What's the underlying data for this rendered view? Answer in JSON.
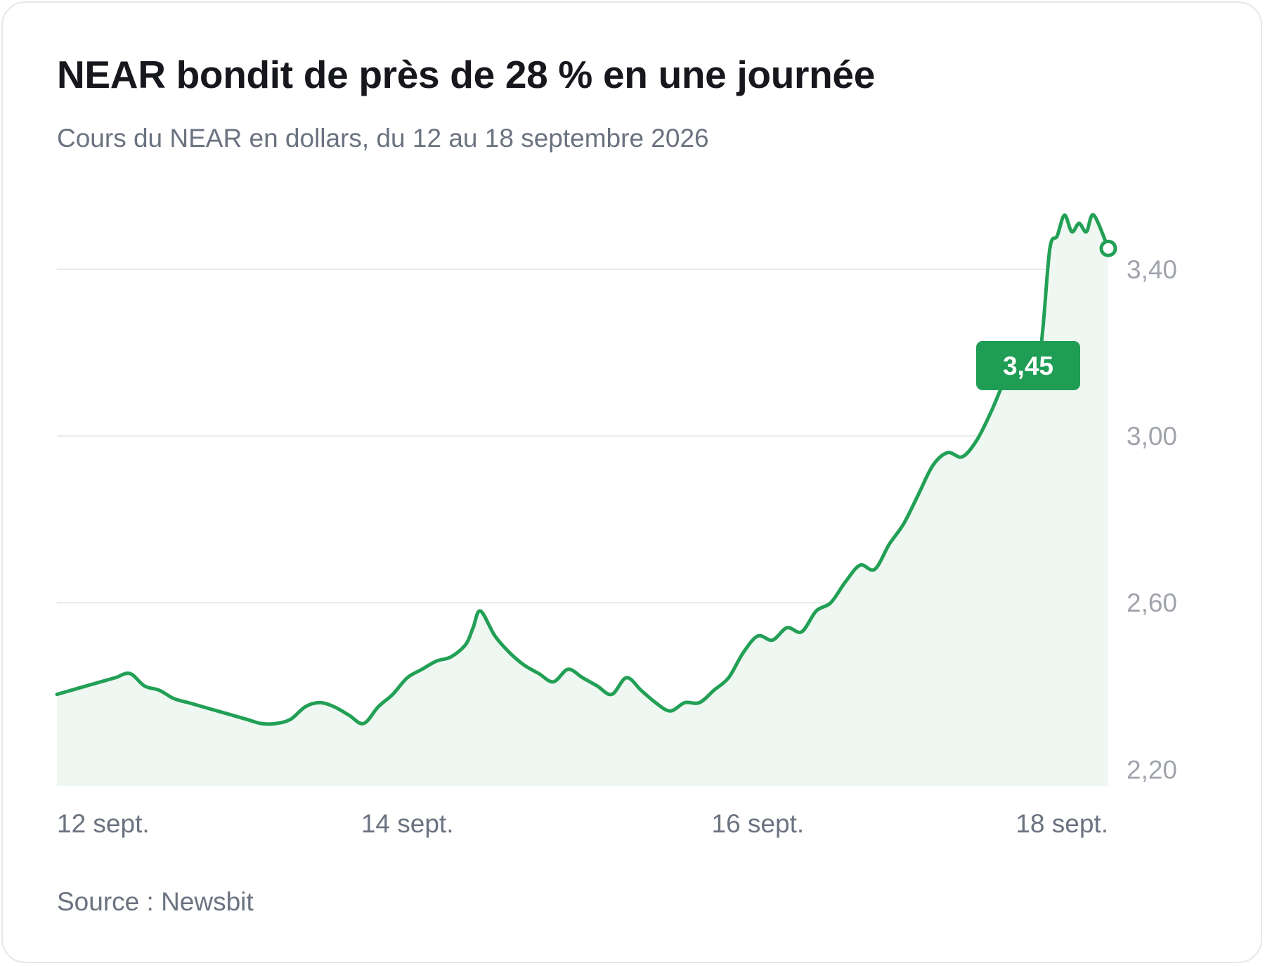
{
  "title": "NEAR bondit de près de 28 % en une journée",
  "subtitle": "Cours du NEAR en dollars, du 12 au 18 septembre 2026",
  "source": "Source : Newsbit",
  "colors": {
    "line": "#22a055",
    "area": "#eff7f2",
    "grid": "#e8e9ec",
    "callout": "#1f9d55"
  },
  "chart_data": {
    "type": "area",
    "title": "NEAR bondit de près de 28 % en une journée",
    "subtitle": "Cours du NEAR en dollars, du 12 au 18 septembre 2026",
    "xlabel": "",
    "ylabel": "",
    "x_start": "2026-09-12",
    "x_end": "2026-09-18",
    "x_ticks": [
      {
        "date": "2026-09-12",
        "label": "12 sept."
      },
      {
        "date": "2026-09-14",
        "label": "14 sept."
      },
      {
        "date": "2026-09-16",
        "label": "16 sept."
      },
      {
        "date": "2026-09-18",
        "label": "18 sept."
      }
    ],
    "y_ticks": [
      {
        "value": 2.2,
        "label": "2,20"
      },
      {
        "value": 2.6,
        "label": "2,60"
      },
      {
        "value": 3.0,
        "label": "3,00"
      },
      {
        "value": 3.4,
        "label": "3,40"
      }
    ],
    "ylim": [
      2.16,
      3.54
    ],
    "y_axis_position": "right",
    "grid": true,
    "legend": "none",
    "series": [
      {
        "points": [
          {
            "x": "2026-09-12T00:00",
            "y": 2.38
          },
          {
            "x": "2026-09-12T02:00",
            "y": 2.39
          },
          {
            "x": "2026-09-12T04:00",
            "y": 2.4
          },
          {
            "x": "2026-09-12T06:00",
            "y": 2.41
          },
          {
            "x": "2026-09-12T08:00",
            "y": 2.42
          },
          {
            "x": "2026-09-12T10:00",
            "y": 2.43
          },
          {
            "x": "2026-09-12T12:00",
            "y": 2.4
          },
          {
            "x": "2026-09-12T14:00",
            "y": 2.39
          },
          {
            "x": "2026-09-12T16:00",
            "y": 2.37
          },
          {
            "x": "2026-09-12T18:00",
            "y": 2.36
          },
          {
            "x": "2026-09-12T20:00",
            "y": 2.35
          },
          {
            "x": "2026-09-12T22:00",
            "y": 2.34
          },
          {
            "x": "2026-09-13T00:00",
            "y": 2.33
          },
          {
            "x": "2026-09-13T02:00",
            "y": 2.32
          },
          {
            "x": "2026-09-13T04:00",
            "y": 2.31
          },
          {
            "x": "2026-09-13T06:00",
            "y": 2.31
          },
          {
            "x": "2026-09-13T08:00",
            "y": 2.32
          },
          {
            "x": "2026-09-13T10:00",
            "y": 2.35
          },
          {
            "x": "2026-09-13T12:00",
            "y": 2.36
          },
          {
            "x": "2026-09-13T14:00",
            "y": 2.35
          },
          {
            "x": "2026-09-13T16:00",
            "y": 2.33
          },
          {
            "x": "2026-09-13T18:00",
            "y": 2.31
          },
          {
            "x": "2026-09-13T20:00",
            "y": 2.35
          },
          {
            "x": "2026-09-13T22:00",
            "y": 2.38
          },
          {
            "x": "2026-09-14T00:00",
            "y": 2.42
          },
          {
            "x": "2026-09-14T02:00",
            "y": 2.44
          },
          {
            "x": "2026-09-14T04:00",
            "y": 2.46
          },
          {
            "x": "2026-09-14T06:00",
            "y": 2.47
          },
          {
            "x": "2026-09-14T08:00",
            "y": 2.5
          },
          {
            "x": "2026-09-14T09:00",
            "y": 2.54
          },
          {
            "x": "2026-09-14T10:00",
            "y": 2.58
          },
          {
            "x": "2026-09-14T12:00",
            "y": 2.52
          },
          {
            "x": "2026-09-14T14:00",
            "y": 2.48
          },
          {
            "x": "2026-09-14T16:00",
            "y": 2.45
          },
          {
            "x": "2026-09-14T18:00",
            "y": 2.43
          },
          {
            "x": "2026-09-14T20:00",
            "y": 2.41
          },
          {
            "x": "2026-09-14T22:00",
            "y": 2.44
          },
          {
            "x": "2026-09-15T00:00",
            "y": 2.42
          },
          {
            "x": "2026-09-15T02:00",
            "y": 2.4
          },
          {
            "x": "2026-09-15T04:00",
            "y": 2.38
          },
          {
            "x": "2026-09-15T06:00",
            "y": 2.42
          },
          {
            "x": "2026-09-15T08:00",
            "y": 2.39
          },
          {
            "x": "2026-09-15T10:00",
            "y": 2.36
          },
          {
            "x": "2026-09-15T12:00",
            "y": 2.34
          },
          {
            "x": "2026-09-15T14:00",
            "y": 2.36
          },
          {
            "x": "2026-09-15T16:00",
            "y": 2.36
          },
          {
            "x": "2026-09-15T18:00",
            "y": 2.39
          },
          {
            "x": "2026-09-15T20:00",
            "y": 2.42
          },
          {
            "x": "2026-09-15T22:00",
            "y": 2.48
          },
          {
            "x": "2026-09-16T00:00",
            "y": 2.52
          },
          {
            "x": "2026-09-16T02:00",
            "y": 2.51
          },
          {
            "x": "2026-09-16T04:00",
            "y": 2.54
          },
          {
            "x": "2026-09-16T06:00",
            "y": 2.53
          },
          {
            "x": "2026-09-16T08:00",
            "y": 2.58
          },
          {
            "x": "2026-09-16T10:00",
            "y": 2.6
          },
          {
            "x": "2026-09-16T12:00",
            "y": 2.65
          },
          {
            "x": "2026-09-16T14:00",
            "y": 2.69
          },
          {
            "x": "2026-09-16T16:00",
            "y": 2.68
          },
          {
            "x": "2026-09-16T18:00",
            "y": 2.74
          },
          {
            "x": "2026-09-16T20:00",
            "y": 2.79
          },
          {
            "x": "2026-09-16T22:00",
            "y": 2.86
          },
          {
            "x": "2026-09-17T00:00",
            "y": 2.93
          },
          {
            "x": "2026-09-17T02:00",
            "y": 2.96
          },
          {
            "x": "2026-09-17T04:00",
            "y": 2.95
          },
          {
            "x": "2026-09-17T06:00",
            "y": 2.99
          },
          {
            "x": "2026-09-17T08:00",
            "y": 3.06
          },
          {
            "x": "2026-09-17T10:00",
            "y": 3.14
          },
          {
            "x": "2026-09-17T12:00",
            "y": 3.19
          },
          {
            "x": "2026-09-17T14:00",
            "y": 3.12
          },
          {
            "x": "2026-09-17T15:00",
            "y": 3.25
          },
          {
            "x": "2026-09-17T16:00",
            "y": 3.45
          },
          {
            "x": "2026-09-17T17:00",
            "y": 3.48
          },
          {
            "x": "2026-09-17T18:00",
            "y": 3.53
          },
          {
            "x": "2026-09-17T19:00",
            "y": 3.49
          },
          {
            "x": "2026-09-17T20:00",
            "y": 3.51
          },
          {
            "x": "2026-09-17T21:00",
            "y": 3.49
          },
          {
            "x": "2026-09-17T22:00",
            "y": 3.53
          },
          {
            "x": "2026-09-18T00:00",
            "y": 3.45
          }
        ]
      }
    ],
    "annotations": [
      {
        "text": "3,45",
        "x": "2026-09-18T00:00",
        "y": 3.45
      }
    ]
  }
}
